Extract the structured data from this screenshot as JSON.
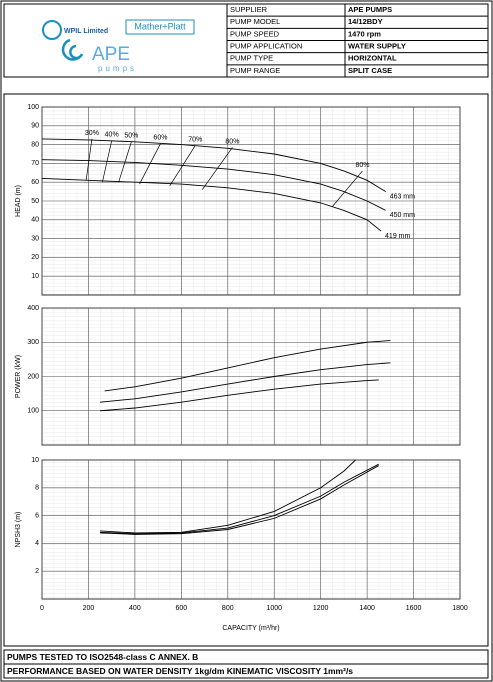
{
  "header": {
    "logos": {
      "wpil": "WPIL Limited",
      "mp": "Mather+Platt",
      "ape": "APE",
      "pumps": "pumps"
    },
    "table": {
      "rows": [
        [
          "SUPPLIER",
          "APE PUMPS"
        ],
        [
          "PUMP MODEL",
          "14/12BDY"
        ],
        [
          "PUMP SPEED",
          "1470 rpm"
        ],
        [
          "PUMP APPLICATION",
          "WATER SUPPLY"
        ],
        [
          "PUMP TYPE",
          "HORIZONTAL"
        ],
        [
          "PUMP RANGE",
          "SPLIT CASE"
        ]
      ]
    }
  },
  "chart_data": [
    {
      "type": "line",
      "ylabel": "HEAD (m)",
      "xlim": [
        0,
        1800
      ],
      "xticks": [
        0,
        200,
        400,
        600,
        800,
        1000,
        1200,
        1400,
        1600,
        1800
      ],
      "x_tick_labels": false,
      "ylim": [
        0,
        100
      ],
      "yticks": [
        10,
        20,
        30,
        40,
        50,
        60,
        70,
        80,
        90,
        100
      ],
      "grid": true,
      "series": [
        {
          "name": "463 mm",
          "color": "#000000",
          "x": [
            0,
            200,
            400,
            600,
            800,
            1000,
            1200,
            1300,
            1400,
            1480
          ],
          "values": [
            83,
            82.5,
            81.5,
            80,
            78,
            75,
            70,
            66,
            61,
            55
          ]
        },
        {
          "name": "450 mm",
          "color": "#000000",
          "x": [
            0,
            200,
            400,
            600,
            800,
            1000,
            1200,
            1300,
            1400,
            1480
          ],
          "values": [
            72,
            71.5,
            70.5,
            69,
            67,
            64,
            59,
            55,
            50,
            45
          ]
        },
        {
          "name": "419 mm",
          "color": "#000000",
          "x": [
            0,
            200,
            400,
            600,
            800,
            1000,
            1200,
            1300,
            1400,
            1460
          ],
          "values": [
            62,
            61,
            60,
            59,
            57,
            54,
            49,
            45,
            40,
            34
          ]
        }
      ],
      "efficiency_curves": [
        {
          "name": "30%",
          "color": "#000000",
          "x": [
            215,
            190
          ],
          "values": [
            83,
            61
          ]
        },
        {
          "name": "40%",
          "color": "#000000",
          "x": [
            300,
            260
          ],
          "values": [
            82,
            60
          ]
        },
        {
          "name": "50%",
          "color": "#000000",
          "x": [
            385,
            330
          ],
          "values": [
            81.5,
            60
          ]
        },
        {
          "name": "60%",
          "color": "#000000",
          "x": [
            510,
            420
          ],
          "values": [
            80.5,
            59
          ]
        },
        {
          "name": "70%",
          "color": "#000000",
          "x": [
            660,
            550
          ],
          "values": [
            79.5,
            58
          ]
        },
        {
          "name": "80%",
          "color": "#000000",
          "x": [
            820,
            690
          ],
          "values": [
            78.5,
            56
          ]
        },
        {
          "name": "80%",
          "color": "#000000",
          "x": [
            1380,
            1250
          ],
          "values": [
            66,
            47
          ]
        }
      ]
    },
    {
      "type": "line",
      "ylabel": "POWER (kW)",
      "xlim": [
        0,
        1800
      ],
      "xticks": [
        0,
        200,
        400,
        600,
        800,
        1000,
        1200,
        1400,
        1600,
        1800
      ],
      "x_tick_labels": false,
      "ylim": [
        0,
        400
      ],
      "yticks": [
        100,
        200,
        300,
        400
      ],
      "grid": true,
      "series": [
        {
          "color": "#000000",
          "x": [
            270,
            400,
            600,
            800,
            1000,
            1200,
            1400,
            1500
          ],
          "values": [
            158,
            170,
            195,
            225,
            255,
            280,
            300,
            305
          ]
        },
        {
          "color": "#000000",
          "x": [
            250,
            400,
            600,
            800,
            1000,
            1200,
            1400,
            1500
          ],
          "values": [
            125,
            135,
            155,
            178,
            200,
            220,
            235,
            240
          ]
        },
        {
          "color": "#000000",
          "x": [
            250,
            400,
            600,
            800,
            1000,
            1200,
            1400,
            1450
          ],
          "values": [
            100,
            108,
            125,
            145,
            163,
            178,
            188,
            190
          ]
        }
      ]
    },
    {
      "type": "line",
      "ylabel": "NPSH3 (m)",
      "xlabel": "CAPACITY (m³/hr)",
      "xlim": [
        0,
        1800
      ],
      "xticks": [
        0,
        200,
        400,
        600,
        800,
        1000,
        1200,
        1400,
        1600,
        1800
      ],
      "x_tick_labels": true,
      "ylim": [
        0,
        10
      ],
      "yticks": [
        2,
        4,
        6,
        8,
        10
      ],
      "grid": true,
      "series": [
        {
          "color": "#000000",
          "x": [
            250,
            400,
            600,
            800,
            1000,
            1200,
            1300,
            1350
          ],
          "values": [
            4.9,
            4.75,
            4.8,
            5.3,
            6.3,
            8.0,
            9.2,
            10
          ]
        },
        {
          "color": "#000000",
          "x": [
            250,
            400,
            600,
            800,
            1000,
            1200,
            1300,
            1450
          ],
          "values": [
            4.8,
            4.7,
            4.75,
            5.1,
            6.0,
            7.4,
            8.4,
            9.7
          ]
        },
        {
          "color": "#000000",
          "x": [
            250,
            400,
            600,
            800,
            1000,
            1200,
            1300,
            1450
          ],
          "values": [
            4.75,
            4.65,
            4.7,
            5.0,
            5.8,
            7.2,
            8.2,
            9.6
          ]
        }
      ]
    }
  ],
  "footer": {
    "lines": [
      "PUMPS TESTED TO ISO2548-class C ANNEX. B",
      "PERFORMANCE BASED ON WATER DENSITY 1kg/dm  KINEMATIC VISCOSITY 1mm²/s"
    ]
  }
}
